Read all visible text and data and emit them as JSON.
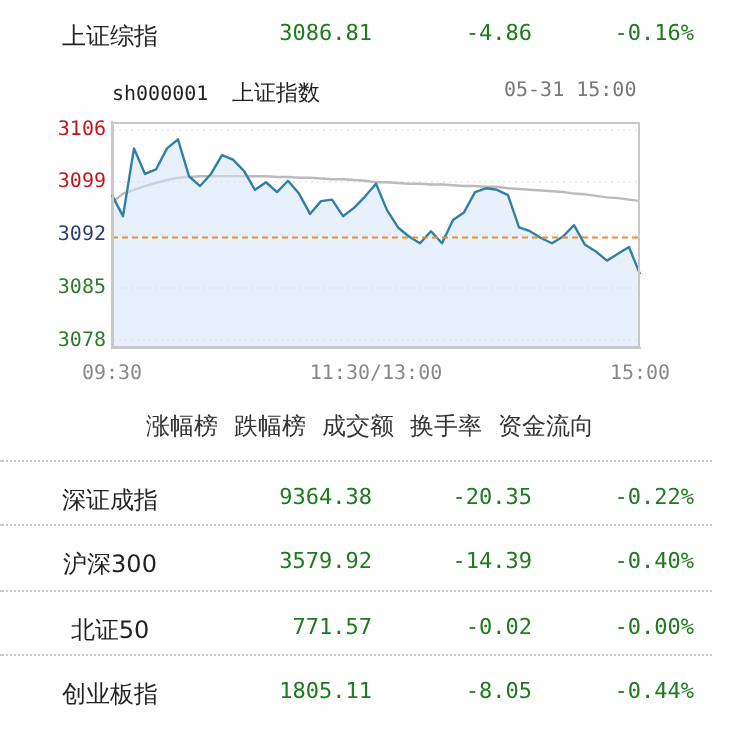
{
  "chart_data": [
    {
      "type": "other",
      "annotations": [
        "上证综指",
        "3086.81",
        "-4.86",
        "-0.16%"
      ]
    },
    {
      "type": "line",
      "title": "上证指数",
      "annotations": [
        "sh000001",
        "05-31 15:00"
      ],
      "categories": [
        "09:30",
        null,
        null,
        null,
        null,
        null,
        null,
        null,
        null,
        null,
        null,
        null,
        null,
        null,
        null,
        null,
        null,
        null,
        null,
        null,
        null,
        null,
        null,
        null,
        "11:30/13:00",
        null,
        null,
        null,
        null,
        null,
        null,
        null,
        null,
        null,
        null,
        null,
        null,
        null,
        null,
        null,
        null,
        null,
        null,
        null,
        null,
        null,
        null,
        null,
        "15:00"
      ],
      "ylim": [
        3077,
        3107
      ],
      "yticks": [
        3078,
        3085,
        3092,
        3099,
        3106
      ],
      "grid": "y",
      "legend": false,
      "marker": "none",
      "ref_lines": [
        {
          "axis": "y",
          "value": 3091.67,
          "color": "#e8912c",
          "line_style": "dashed"
        }
      ],
      "series": [
        {
          "type": "area",
          "color": "#2f7fa6",
          "values": [
            3097.3,
            3094.5,
            3103.5,
            3100.1,
            3100.7,
            3103.5,
            3104.7,
            3099.8,
            3098.5,
            3100.1,
            3102.6,
            3102.0,
            3100.5,
            3098.0,
            3099.0,
            3097.7,
            3099.2,
            3097.5,
            3094.8,
            3096.5,
            3096.7,
            3094.5,
            3095.6,
            3097.1,
            3098.8,
            3095.3,
            3093.0,
            3091.8,
            3090.9,
            3092.5,
            3090.9,
            3094.0,
            3095.0,
            3097.7,
            3098.2,
            3098.0,
            3097.3,
            3093.0,
            3092.5,
            3091.6,
            3090.9,
            3091.8,
            3093.3,
            3090.7,
            3089.8,
            3088.6,
            3089.5,
            3090.4,
            3086.8
          ]
        },
        {
          "type": "line",
          "color": "#bbbbbb",
          "values": [
            3096.3,
            3097.5,
            3098.0,
            3098.5,
            3098.9,
            3099.3,
            3099.6,
            3099.7,
            3099.8,
            3099.8,
            3099.8,
            3099.8,
            3099.8,
            3099.8,
            3099.8,
            3099.7,
            3099.7,
            3099.6,
            3099.6,
            3099.5,
            3099.4,
            3099.4,
            3099.3,
            3099.2,
            3099.0,
            3099.0,
            3098.9,
            3098.8,
            3098.8,
            3098.7,
            3098.7,
            3098.6,
            3098.5,
            3098.5,
            3098.4,
            3098.4,
            3098.2,
            3098.1,
            3098.0,
            3097.9,
            3097.8,
            3097.7,
            3097.5,
            3097.4,
            3097.2,
            3097.0,
            3096.9,
            3096.7,
            3096.5
          ]
        }
      ]
    },
    {
      "type": "other",
      "annotations": [
        "涨幅榜",
        "跌幅榜",
        "成交额",
        "换手率",
        "资金流向"
      ]
    },
    {
      "type": "other",
      "annotations": [
        "深证成指",
        "9364.38",
        "-20.35",
        "-0.22%",
        "沪深300",
        "3579.92",
        "-14.39",
        "-0.40%",
        "北证50",
        "771.57",
        "-0.02",
        "-0.00%",
        "创业板指",
        "1805.11",
        "-8.05",
        "-0.44%"
      ]
    }
  ]
}
